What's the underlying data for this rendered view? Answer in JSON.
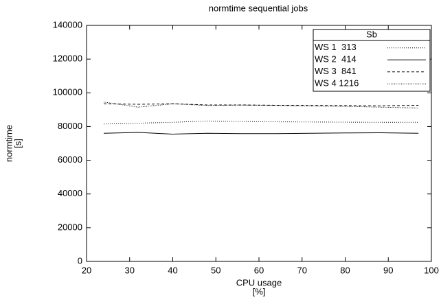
{
  "chart_data": {
    "type": "line",
    "title": "normtime sequential jobs",
    "xlabel": [
      "CPU usage",
      "[%]"
    ],
    "ylabel": [
      "normtime",
      "[s]"
    ],
    "legend_title": "Sb",
    "legend": "top-right",
    "x": [
      24,
      32,
      40,
      48,
      56,
      64,
      72,
      80,
      88,
      97
    ],
    "series": [
      {
        "name": "WS 1  313",
        "color": "#000000",
        "dash": "1,2",
        "values": [
          81500,
          82000,
          82500,
          83300,
          83000,
          82800,
          82700,
          82600,
          82500,
          82500
        ]
      },
      {
        "name": "WS 2  414",
        "color": "#000000",
        "dash": "none",
        "values": [
          76000,
          76500,
          75500,
          76000,
          75800,
          75800,
          76000,
          76200,
          76300,
          76000
        ]
      },
      {
        "name": "WS 3  841",
        "color": "#000000",
        "dash": "4,3",
        "values": [
          93500,
          93200,
          93500,
          92800,
          92800,
          92600,
          92500,
          92400,
          92300,
          92600
        ]
      },
      {
        "name": "WS 4 1216",
        "color": "#000000",
        "dash": "1,1.5",
        "values": [
          94500,
          91500,
          93500,
          92500,
          92700,
          92500,
          92200,
          92000,
          91500,
          91000
        ]
      }
    ],
    "xlim": [
      20,
      100
    ],
    "xticks": [
      20,
      30,
      40,
      50,
      60,
      70,
      80,
      90,
      100
    ],
    "ylim": [
      0,
      140000
    ],
    "yticks": [
      0,
      20000,
      40000,
      60000,
      80000,
      100000,
      120000,
      140000
    ]
  }
}
